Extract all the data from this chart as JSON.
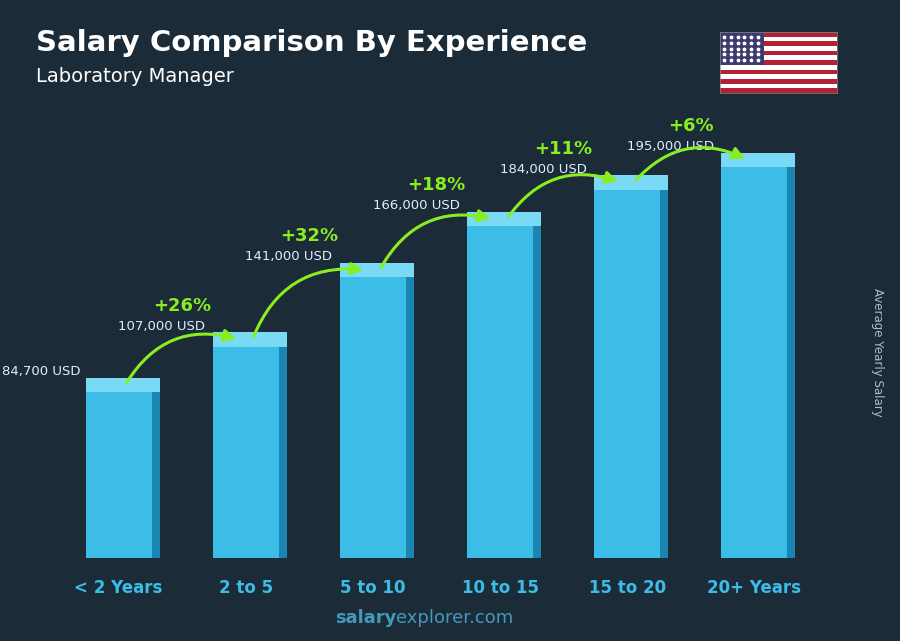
{
  "title": "Salary Comparison By Experience",
  "subtitle": "Laboratory Manager",
  "ylabel": "Average Yearly Salary",
  "xlabel_labels": [
    "< 2 Years",
    "2 to 5",
    "5 to 10",
    "10 to 15",
    "15 to 20",
    "20+ Years"
  ],
  "values": [
    84700,
    107000,
    141000,
    166000,
    184000,
    195000
  ],
  "salary_labels": [
    "84,700 USD",
    "107,000 USD",
    "141,000 USD",
    "166,000 USD",
    "184,000 USD",
    "195,000 USD"
  ],
  "pct_labels": [
    "+26%",
    "+32%",
    "+18%",
    "+11%",
    "+6%"
  ],
  "bar_face_color": "#3bbde8",
  "bar_top_color": "#7adaf5",
  "bar_side_color": "#1a85b0",
  "bg_color": "#1c2b38",
  "title_color": "#ffffff",
  "subtitle_color": "#ffffff",
  "salary_text_color": "#ddeeff",
  "pct_color": "#88ee22",
  "arrow_color": "#88ee22",
  "xtick_color": "#3bbde8",
  "watermark_salary_color": "#4499bb",
  "watermark_explorer_color": "#4499bb",
  "ylabel_color": "#aabbcc",
  "ylim_max": 220000,
  "bar_width": 0.52
}
